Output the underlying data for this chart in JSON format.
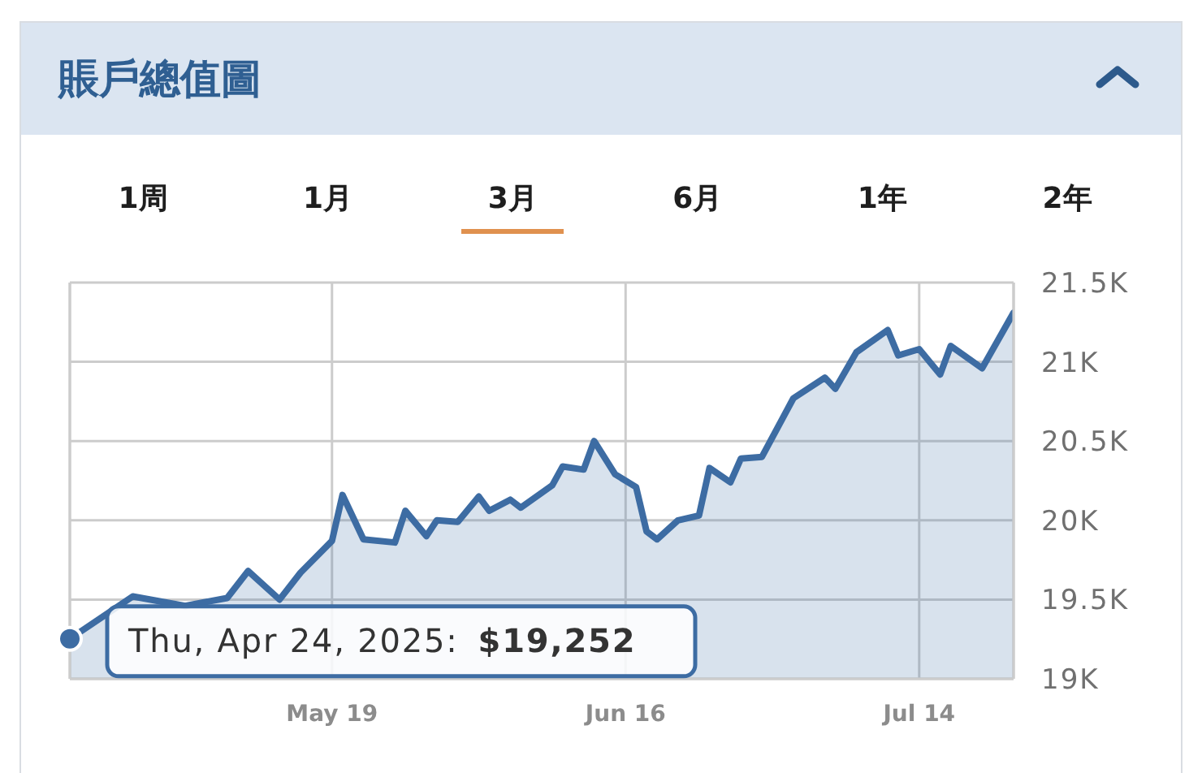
{
  "chart_data": {
    "type": "area",
    "title": "賬戶總值圖",
    "x": [
      "2025-04-24",
      "2025-04-30",
      "2025-05-02",
      "2025-05-05",
      "2025-05-07",
      "2025-05-09",
      "2025-05-11",
      "2025-05-14",
      "2025-05-16",
      "2025-05-19",
      "2025-05-20",
      "2025-05-22",
      "2025-05-25",
      "2025-05-26",
      "2025-05-28",
      "2025-05-29",
      "2025-05-31",
      "2025-06-02",
      "2025-06-03",
      "2025-06-05",
      "2025-06-06",
      "2025-06-09",
      "2025-06-10",
      "2025-06-12",
      "2025-06-13",
      "2025-06-15",
      "2025-06-17",
      "2025-06-18",
      "2025-06-19",
      "2025-06-21",
      "2025-06-23",
      "2025-06-24",
      "2025-06-26",
      "2025-06-27",
      "2025-06-29",
      "2025-07-02",
      "2025-07-05",
      "2025-07-06",
      "2025-07-08",
      "2025-07-11",
      "2025-07-12",
      "2025-07-14",
      "2025-07-16",
      "2025-07-17",
      "2025-07-20",
      "2025-07-23"
    ],
    "series": [
      {
        "color": "#3d6ca3",
        "values": [
          19252,
          19520,
          null,
          19460,
          null,
          19510,
          19680,
          19500,
          19670,
          19870,
          20160,
          19880,
          19860,
          20060,
          19900,
          20000,
          19990,
          20150,
          20060,
          20130,
          20080,
          20220,
          20340,
          20320,
          20500,
          20290,
          20210,
          19930,
          19880,
          20000,
          20030,
          20330,
          20240,
          20390,
          20400,
          20770,
          20900,
          20830,
          21060,
          21200,
          21040,
          21080,
          20920,
          21100,
          20960,
          21310
        ]
      }
    ],
    "xlim": [
      "2025-04-24",
      "2025-07-23"
    ],
    "xticks": [
      {
        "value": "2025-05-19",
        "label": "May 19"
      },
      {
        "value": "2025-06-16",
        "label": "Jun 16"
      },
      {
        "value": "2025-07-14",
        "label": "Jul 14"
      }
    ],
    "ylim": [
      19000,
      21500
    ],
    "yticks": [
      {
        "value": 19000,
        "label": "19K"
      },
      {
        "value": 19500,
        "label": "19.5K"
      },
      {
        "value": 20000,
        "label": "20K"
      },
      {
        "value": 20500,
        "label": "20.5K"
      },
      {
        "value": 21000,
        "label": "21K"
      },
      {
        "value": 21500,
        "label": "21.5K"
      }
    ],
    "grid": true,
    "annotations": [
      "1周",
      "1月",
      "3月",
      "6月",
      "1年",
      "2年",
      {
        "text": "Thu, Apr 24, 2025: $19,252",
        "x": "2025-04-24",
        "y": 19252
      }
    ]
  }
}
